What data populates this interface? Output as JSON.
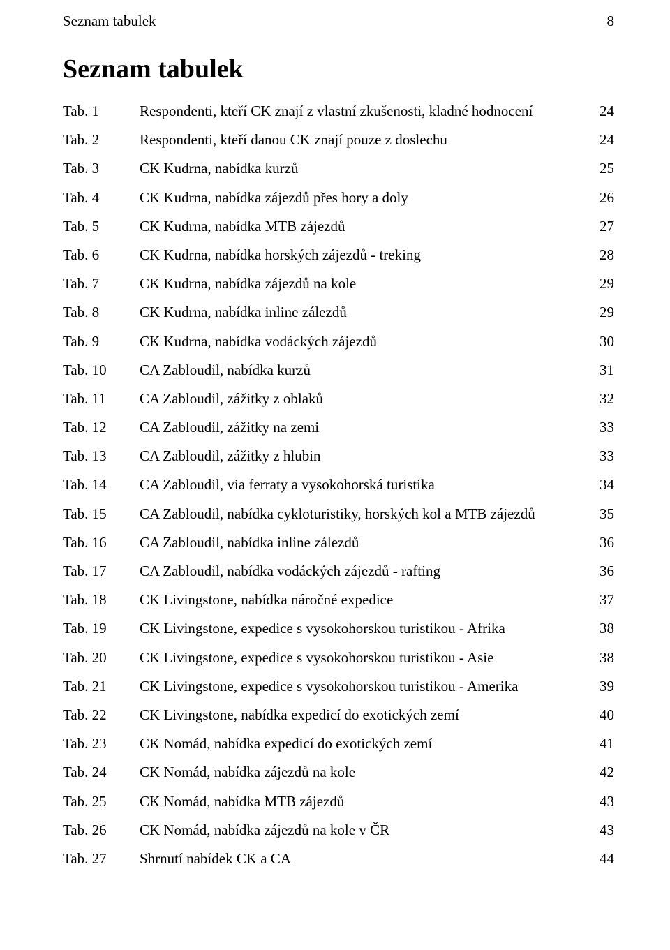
{
  "running_header": {
    "title": "Seznam tabulek",
    "page_number": "8"
  },
  "section_title": "Seznam tabulek",
  "toc": [
    {
      "label": "Tab. 1",
      "desc": "Respondenti, kteří CK znají z vlastní zkušenosti, kladné hodnocení",
      "page": "24"
    },
    {
      "label": "Tab. 2",
      "desc": "Respondenti, kteří danou CK znají pouze z doslechu",
      "page": "24"
    },
    {
      "label": "Tab. 3",
      "desc": "CK Kudrna, nabídka kurzů",
      "page": "25"
    },
    {
      "label": "Tab. 4",
      "desc": "CK Kudrna, nabídka zájezdů přes hory a doly",
      "page": "26"
    },
    {
      "label": "Tab. 5",
      "desc": "CK Kudrna, nabídka MTB zájezdů",
      "page": "27"
    },
    {
      "label": "Tab. 6",
      "desc": "CK Kudrna, nabídka horských zájezdů - treking",
      "page": "28"
    },
    {
      "label": "Tab. 7",
      "desc": "CK Kudrna, nabídka zájezdů na kole",
      "page": "29"
    },
    {
      "label": "Tab. 8",
      "desc": "CK Kudrna, nabídka inline zálezdů",
      "page": "29"
    },
    {
      "label": "Tab. 9",
      "desc": "CK Kudrna, nabídka vodáckých zájezdů",
      "page": "30"
    },
    {
      "label": "Tab. 10",
      "desc": "CA Zabloudil, nabídka kurzů",
      "page": "31"
    },
    {
      "label": "Tab. 11",
      "desc": "CA Zabloudil, zážitky z oblaků",
      "page": "32"
    },
    {
      "label": "Tab. 12",
      "desc": "CA Zabloudil, zážitky na zemi",
      "page": "33"
    },
    {
      "label": "Tab. 13",
      "desc": "CA Zabloudil, zážitky z hlubin",
      "page": "33"
    },
    {
      "label": "Tab. 14",
      "desc": "CA Zabloudil, via ferraty a vysokohorská turistika",
      "page": "34"
    },
    {
      "label": "Tab. 15",
      "desc": "CA Zabloudil, nabídka cykloturistiky, horských kol a MTB zájezdů",
      "page": "35"
    },
    {
      "label": "Tab. 16",
      "desc": "CA Zabloudil, nabídka inline zálezdů",
      "page": "36"
    },
    {
      "label": "Tab. 17",
      "desc": "CA Zabloudil, nabídka vodáckých zájezdů - rafting",
      "page": "36"
    },
    {
      "label": "Tab. 18",
      "desc": "CK Livingstone, nabídka náročné expedice",
      "page": "37"
    },
    {
      "label": "Tab. 19",
      "desc": "CK Livingstone, expedice s vysokohorskou turistikou - Afrika",
      "page": "38"
    },
    {
      "label": "Tab. 20",
      "desc": "CK Livingstone, expedice s vysokohorskou turistikou - Asie",
      "page": "38"
    },
    {
      "label": "Tab. 21",
      "desc": "CK Livingstone, expedice s vysokohorskou turistikou - Amerika",
      "page": "39"
    },
    {
      "label": "Tab. 22",
      "desc": "CK Livingstone, nabídka expedicí do exotických zemí",
      "page": "40"
    },
    {
      "label": "Tab. 23",
      "desc": "CK Nomád, nabídka expedicí do exotických zemí",
      "page": "41"
    },
    {
      "label": "Tab. 24",
      "desc": "CK Nomád, nabídka zájezdů na kole",
      "page": "42"
    },
    {
      "label": "Tab. 25",
      "desc": "CK Nomád, nabídka MTB zájezdů",
      "page": "43"
    },
    {
      "label": "Tab. 26",
      "desc": "CK Nomád, nabídka zájezdů na kole v ČR",
      "page": "43"
    },
    {
      "label": "Tab. 27",
      "desc": "Shrnutí nabídek CK a CA",
      "page": "44"
    }
  ],
  "colors": {
    "text": "#000000",
    "background": "#ffffff"
  },
  "typography": {
    "body_font": "Georgia",
    "body_size_pt": 16,
    "title_size_pt": 28,
    "title_weight": "bold"
  }
}
